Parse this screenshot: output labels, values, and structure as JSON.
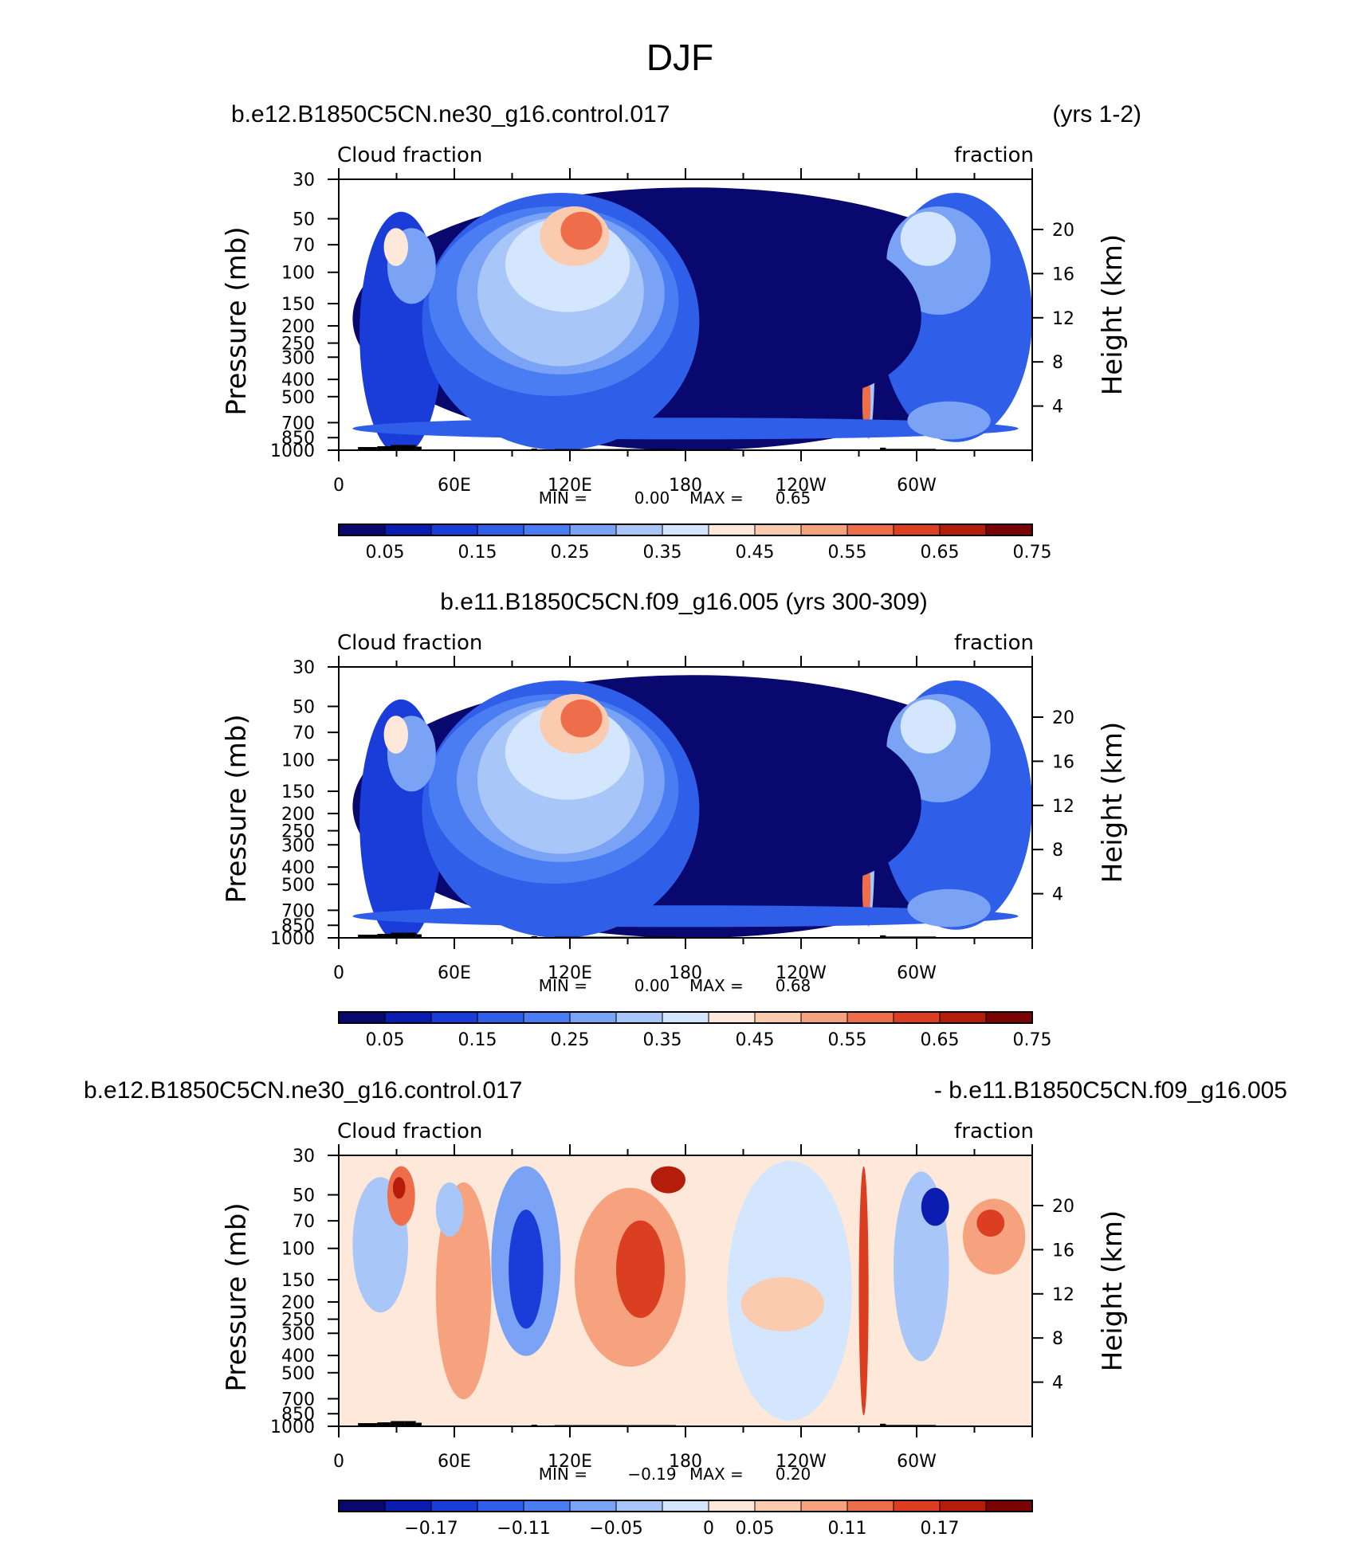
{
  "figure": {
    "title": "DJF"
  },
  "colors": {
    "seq": [
      "#08086e",
      "#0b1cb0",
      "#1a3cd8",
      "#2f5ee8",
      "#4a7df2",
      "#7aa3f6",
      "#a9c6f9",
      "#d4e6fd",
      "#fde8da",
      "#fbcbb0",
      "#f7a27e",
      "#ee6e4c",
      "#dc3e22",
      "#b51d0b",
      "#7a0403"
    ],
    "div": [
      "#08086e",
      "#0b1cb0",
      "#1a3cd8",
      "#2f5ee8",
      "#4a7df2",
      "#7aa3f6",
      "#a9c6f9",
      "#d4e6fd",
      "#fde8da",
      "#fbcbb0",
      "#f7a27e",
      "#ee6e4c",
      "#dc3e22",
      "#b51d0b",
      "#7a0403"
    ]
  },
  "chart_data": [
    {
      "type": "heatmap",
      "variant": "seq",
      "title_left": "b.e12.B1850C5CN.ne30_g16.control.017",
      "title_right": "(yrs 1-2)",
      "title_center": "",
      "left_label": "Cloud fraction",
      "right_label": "fraction",
      "ylabel": "Pressure (mb)",
      "ylabel_right": "Height (km)",
      "x_ticks": [
        "0",
        "60E",
        "120E",
        "180",
        "120W",
        "60W"
      ],
      "y_ticks": [
        "30",
        "50",
        "70",
        "100",
        "150",
        "200",
        "250",
        "300",
        "400",
        "500",
        "700",
        "850",
        "1000"
      ],
      "height_ticks": [
        "20",
        "16",
        "12",
        "8",
        "4"
      ],
      "min_label": "MIN =",
      "min_value": "0.00",
      "max_label": "MAX =",
      "max_value": "0.65",
      "colorbar_labels": [
        "0.05",
        "0.15",
        "0.25",
        "0.35",
        "0.45",
        "0.55",
        "0.65",
        "0.75"
      ]
    },
    {
      "type": "heatmap",
      "variant": "seq",
      "title_left": "",
      "title_right": "",
      "title_center": "b.e11.B1850C5CN.f09_g16.005 (yrs 300-309)",
      "left_label": "Cloud fraction",
      "right_label": "fraction",
      "ylabel": "Pressure (mb)",
      "ylabel_right": "Height (km)",
      "x_ticks": [
        "0",
        "60E",
        "120E",
        "180",
        "120W",
        "60W"
      ],
      "y_ticks": [
        "30",
        "50",
        "70",
        "100",
        "150",
        "200",
        "250",
        "300",
        "400",
        "500",
        "700",
        "850",
        "1000"
      ],
      "height_ticks": [
        "20",
        "16",
        "12",
        "8",
        "4"
      ],
      "min_label": "MIN =",
      "min_value": "0.00",
      "max_label": "MAX =",
      "max_value": "0.68",
      "colorbar_labels": [
        "0.05",
        "0.15",
        "0.25",
        "0.35",
        "0.45",
        "0.55",
        "0.65",
        "0.75"
      ]
    },
    {
      "type": "heatmap",
      "variant": "div",
      "title_left": "b.e12.B1850C5CN.ne30_g16.control.017",
      "title_right": "- b.e11.B1850C5CN.f09_g16.005",
      "title_center": "",
      "left_label": "Cloud fraction",
      "right_label": "fraction",
      "ylabel": "Pressure (mb)",
      "ylabel_right": "Height (km)",
      "x_ticks": [
        "0",
        "60E",
        "120E",
        "180",
        "120W",
        "60W"
      ],
      "y_ticks": [
        "30",
        "50",
        "70",
        "100",
        "150",
        "200",
        "250",
        "300",
        "400",
        "500",
        "700",
        "850",
        "1000"
      ],
      "height_ticks": [
        "20",
        "16",
        "12",
        "8",
        "4"
      ],
      "min_label": "MIN =",
      "min_value": "−0.19",
      "max_label": "MAX =",
      "max_value": "0.20",
      "colorbar_labels": [
        "−0.17",
        "−0.11",
        "−0.05",
        "0",
        "0.05",
        "0.11",
        "0.17"
      ]
    }
  ]
}
